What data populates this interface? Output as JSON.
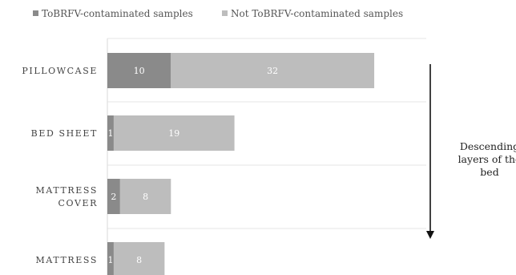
{
  "chart_data": {
    "type": "bar",
    "orientation": "horizontal",
    "stacked": true,
    "categories": [
      [
        "PILLOWCASE"
      ],
      [
        "BED SHEET"
      ],
      [
        "MATTRESS",
        "COVER"
      ],
      [
        "MATTRESS"
      ]
    ],
    "series": [
      {
        "name": "ToBRFV-contaminated samples",
        "color": "#8a8a8a",
        "values": [
          10,
          1,
          2,
          1
        ]
      },
      {
        "name": "Not ToBRFV-contaminated samples",
        "color": "#bdbdbd",
        "values": [
          32,
          19,
          8,
          8
        ]
      }
    ],
    "data_labels": true,
    "legend_position": "top",
    "gridlines": "horizontal separators between categories",
    "annotation": {
      "lines": [
        "Descending",
        "layers of the",
        "bed"
      ],
      "arrow": "down"
    }
  }
}
